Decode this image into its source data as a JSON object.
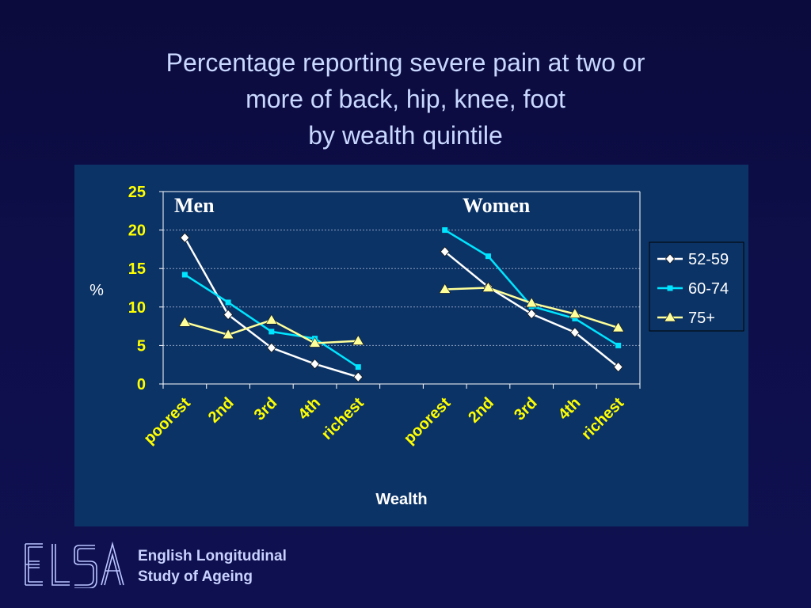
{
  "slide": {
    "title_lines": [
      "Percentage reporting severe pain at two or",
      "more of back, hip, knee, foot",
      "by wealth quintile"
    ]
  },
  "chart_data": {
    "type": "line",
    "ylabel": "%",
    "xlabel": "Wealth",
    "ylim": [
      0,
      25
    ],
    "yticks": [
      0,
      5,
      10,
      15,
      20,
      25
    ],
    "grid": "horizontal dotted",
    "legend_position": "right",
    "panels": [
      {
        "label": "Men",
        "categories": [
          "poorest",
          "2nd",
          "3rd",
          "4th",
          "richest"
        ],
        "series": [
          {
            "name": "52-59",
            "values": [
              19.0,
              9.0,
              4.7,
              2.6,
              0.9
            ]
          },
          {
            "name": "60-74",
            "values": [
              14.2,
              10.6,
              6.8,
              5.9,
              2.2
            ]
          },
          {
            "name": "75+",
            "values": [
              8.0,
              6.4,
              8.3,
              5.3,
              5.6
            ]
          }
        ]
      },
      {
        "label": "Women",
        "categories": [
          "poorest",
          "2nd",
          "3rd",
          "4th",
          "richest"
        ],
        "series": [
          {
            "name": "52-59",
            "values": [
              17.2,
              12.6,
              9.1,
              6.7,
              2.2
            ]
          },
          {
            "name": "60-74",
            "values": [
              20.0,
              16.6,
              10.1,
              8.5,
              5.0
            ]
          },
          {
            "name": "75+",
            "values": [
              12.3,
              12.5,
              10.5,
              9.1,
              7.3
            ]
          }
        ]
      }
    ],
    "series_colors": {
      "52-59": "#ffffff",
      "60-74": "#00e5ff",
      "75+": "#ffff99"
    },
    "series_markers": {
      "52-59": "diamond",
      "60-74": "square",
      "75+": "triangle"
    }
  },
  "footer": {
    "logo_text": "ELSA",
    "org_line1": "English Longitudinal",
    "org_line2": "Study of Ageing"
  },
  "colors": {
    "background": "#0e0e4a",
    "chart_area": "#0b3366",
    "title": "#c9d8ff",
    "tick_label_x": "#ffff00",
    "axis_text": "#ffff00"
  }
}
